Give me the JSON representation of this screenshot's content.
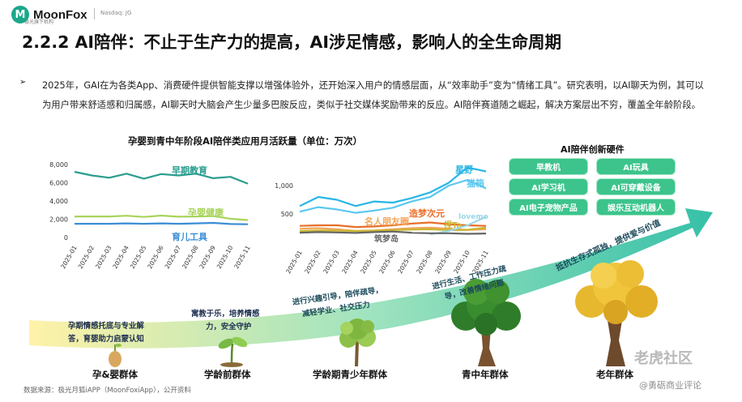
{
  "header": {
    "logo_mark": "M",
    "brand": "MoonFox",
    "brand_sub": "极光旗下机构",
    "ticker": "Nasdaq: JG"
  },
  "title": "2.2.2 AI陪伴：不止于生产力的提高，AI涉足情感，影响人的全生命周期",
  "bullet_symbol": "➢",
  "paragraph": "2025年，GAI在为各类App、消费硬件提供智能支撑以增强体验外，还开始深入用户的情感层面，从“效率助手”变为“情绪工具”。研究表明，以AI聊天为例，其可以为用户带来舒适感和归属感，AI聊天时大脑会产生少量多巴胺反应，类似于社交媒体奖励带来的反应。AI陪伴赛道随之崛起，解决方案层出不穷，覆盖全年龄阶段。",
  "chart_title": "孕婴到青中年阶段AI陪伴类应用月活跃量（单位：万次）",
  "chart_data": [
    {
      "type": "line",
      "title": "孕婴到青中年阶段AI陪伴类应用月活跃量（单位：万次）",
      "xlabel": "",
      "ylabel": "",
      "ylim": [
        0,
        8000
      ],
      "yticks": [
        0,
        2000,
        4000,
        6000,
        8000
      ],
      "ytick_labels": [
        "0",
        "2,000",
        "4,000",
        "6,000",
        "8,000"
      ],
      "x": [
        "2025-01",
        "2025-02",
        "2025-03",
        "2025-04",
        "2025-05",
        "2025-06",
        "2025-07",
        "2025-08",
        "2025-09",
        "2025-10",
        "2025-11"
      ],
      "series": [
        {
          "name": "早期教育",
          "color": "#2a9d8f",
          "values": [
            7200,
            6800,
            6550,
            7000,
            6450,
            6950,
            6800,
            7000,
            6500,
            6650,
            5900
          ]
        },
        {
          "name": "孕婴健康",
          "color": "#a8d45a",
          "values": [
            2300,
            2300,
            2300,
            2380,
            2250,
            2400,
            2280,
            2300,
            2350,
            2050,
            1900
          ]
        },
        {
          "name": "育儿工具",
          "color": "#3b8ed6",
          "values": [
            1500,
            1500,
            1500,
            1550,
            1500,
            1550,
            1500,
            1550,
            1600,
            1480,
            1450
          ]
        }
      ]
    },
    {
      "type": "line",
      "title": "",
      "xlabel": "",
      "ylabel": "",
      "ylim": [
        0,
        1400
      ],
      "yticks": [
        500,
        1000
      ],
      "ytick_labels": [
        "500",
        "1,000"
      ],
      "x": [
        "2025-01",
        "2025-02",
        "2025-03",
        "2025-04",
        "2025-05",
        "2025-06",
        "2025-07",
        "2025-08",
        "2025-09",
        "2025-10",
        "2025-11"
      ],
      "series": [
        {
          "name": "星野",
          "color": "#29b6e6",
          "values": [
            640,
            800,
            750,
            640,
            720,
            700,
            780,
            880,
            1050,
            1320,
            1250
          ]
        },
        {
          "name": "猫箱",
          "color": "#5bc8f0",
          "values": [
            540,
            620,
            580,
            520,
            560,
            610,
            720,
            800,
            1000,
            1100,
            950
          ]
        },
        {
          "name": "造梦次元",
          "color": "#e76f2a",
          "values": [
            290,
            300,
            300,
            270,
            280,
            300,
            330,
            350,
            320,
            300,
            290
          ]
        },
        {
          "name": "名人朋友圈",
          "color": "#f2a65a",
          "values": [
            240,
            250,
            230,
            200,
            210,
            230,
            250,
            260,
            240,
            220,
            230
          ]
        },
        {
          "name": "捏Ta",
          "color": "#c9b630",
          "values": [
            200,
            210,
            205,
            200,
            205,
            215,
            225,
            230,
            215,
            220,
            260
          ]
        },
        {
          "name": "lovemo",
          "color": "#9ad8e8",
          "values": [
            null,
            null,
            null,
            null,
            null,
            null,
            null,
            140,
            200,
            300,
            450
          ]
        },
        {
          "name": "筑梦岛",
          "color": "#666666",
          "values": [
            170,
            180,
            175,
            165,
            180,
            190,
            170,
            160,
            160,
            150,
            155
          ]
        }
      ]
    }
  ],
  "hardware": {
    "title": "AI陪伴创新硬件",
    "items": [
      "早教机",
      "AI玩具",
      "AI学习机",
      "AI可穿戴设备",
      "AI电子宠物产品",
      "娱乐互动机器人"
    ],
    "color": "#3cc48c"
  },
  "arrow": {
    "gradient_start": "#fff2a8",
    "gradient_end": "#36c0a8"
  },
  "stages": [
    {
      "label": "孕&婴群体",
      "desc": [
        "孕期情感托底与专业解",
        "答，育婴助力启蒙认知"
      ]
    },
    {
      "label": "学龄前群体",
      "desc": [
        "寓教于乐，培养情感",
        "力，安全守护"
      ]
    },
    {
      "label": "学龄期青少年群体",
      "desc": [
        "进行兴趣引导，陪伴疏导，",
        "减轻学业、社交压力"
      ]
    },
    {
      "label": "青中年群体",
      "desc": [
        "进行生活、工作压力疏",
        "导，改善情绪问题"
      ]
    },
    {
      "label": "老年群体",
      "desc": [
        "抵抗生存式孤独，提供爱与价值"
      ]
    }
  ],
  "source": "数据来源：极光月狐iAPP（MoonFoxiApp），公开资料",
  "watermarks": {
    "top": "老虎社区",
    "bottom": "@勇砺商业评论"
  }
}
